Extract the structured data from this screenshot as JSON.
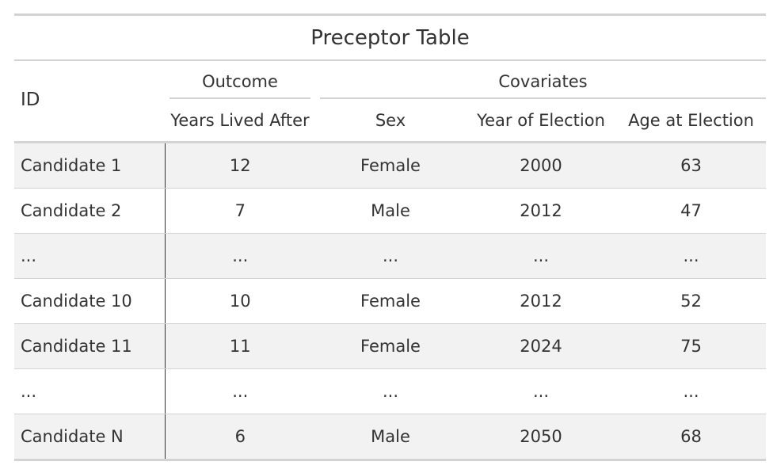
{
  "table": {
    "title": "Preceptor Table",
    "id_header": "ID",
    "spanners": {
      "outcome": "Outcome",
      "covariates": "Covariates"
    },
    "columns": [
      "Years Lived After",
      "Sex",
      "Year of Election",
      "Age at Election"
    ],
    "rows": [
      [
        "Candidate 1",
        "12",
        "Female",
        "2000",
        "63"
      ],
      [
        "Candidate 2",
        "7",
        "Male",
        "2012",
        "47"
      ],
      [
        "...",
        "...",
        "...",
        "...",
        "..."
      ],
      [
        "Candidate 10",
        "10",
        "Female",
        "2012",
        "52"
      ],
      [
        "Candidate 11",
        "11",
        "Female",
        "2024",
        "75"
      ],
      [
        "...",
        "...",
        "...",
        "...",
        "..."
      ],
      [
        "Candidate N",
        "6",
        "Male",
        "2050",
        "68"
      ]
    ]
  }
}
